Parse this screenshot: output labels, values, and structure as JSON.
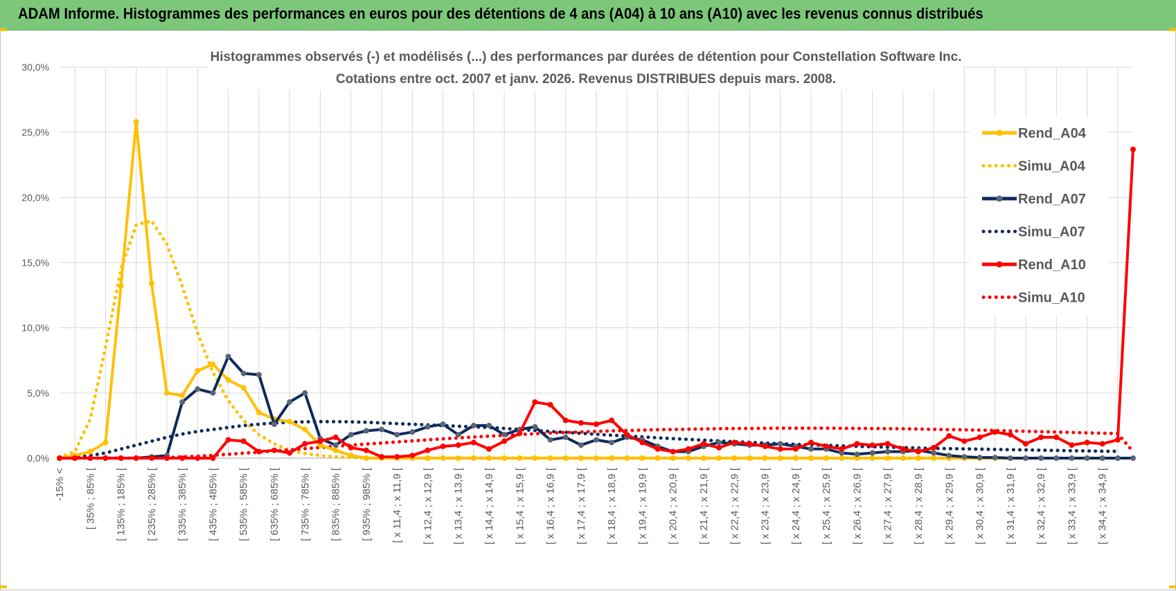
{
  "header": {
    "title": "ADAM Informe. Histogrammes des performances en euros pour des détentions de 4 ans (A04) à 10 ans (A10) avec les revenus connus distribués"
  },
  "chart_data": {
    "type": "line",
    "title_lines": [
      "Histogrammes observés (-) et modélisés (...) des performances par durées de détention pour Constellation Software Inc.",
      "Cotations entre oct. 2007 et janv. 2026. Revenus DISTRIBUES depuis mars. 2008."
    ],
    "y_ticks": [
      "0,0%",
      "5,0%",
      "10,0%",
      "15,0%",
      "20,0%",
      "25,0%",
      "30,0%"
    ],
    "ylim": [
      0,
      30
    ],
    "grid": true,
    "legend_position": "right",
    "x_labels": [
      "-15% <",
      "[ 35% ; 85% [",
      "[ 135% ; 185% [",
      "[ 235% ; 285% [",
      "[ 335% ; 385% [",
      "[ 435% ; 485% [",
      "[ 535% ; 585% [",
      "[ 635% ; 685% [",
      "[ 735% ; 785% [",
      "[ 835% ; 885% [",
      "[ 935% ; 985% [",
      "[ x 11,4 ; x 11,9 [",
      "[ x 12,4 ; x 12,9 [",
      "[ x 13,4 ; x 13,9 [",
      "[ x 14,4 ; x 14,9 [",
      "[ x 15,4 ; x 15,9 [",
      "[ x 16,4 ; x 16,9 [",
      "[ x 17,4 ; x 17,9 [",
      "[ x 18,4 ; x 18,9 [",
      "[ x 19,4 ; x 19,9 [",
      "[ x 20,4 ; x 20,9 [",
      "[ x 21,4 ; x 21,9 [",
      "[ x 22,4 ; x 22,9 [",
      "[ x 23,4 ; x 23,9 [",
      "[ x 24,4 ; x 24,9 [",
      "[ x 25,4 ; x 25,9 [",
      "[ x 26,4 ; x 26,9 [",
      "[ x 27,4 ; x 27,9 [",
      "[ x 28,4 ; x 28,9 [",
      "[ x 29,4 ; x 29,9 [",
      "[ x 30,4 ; x 30,9 [",
      "[ x 31,4 ; x 31,9 [",
      "[ x 32,4 ; x 32,9 [",
      "[ x 33,4 ; x 33,9 [",
      "[ x 34,4 ; x 34,9 ["
    ],
    "series": [
      {
        "name": "Rend_A04",
        "color": "#ffc000",
        "style": "solid",
        "values": [
          0,
          0.2,
          0.5,
          1.2,
          13.2,
          25.8,
          13.4,
          5.0,
          4.8,
          6.7,
          7.2,
          6.0,
          5.4,
          3.5,
          3.0,
          2.8,
          2.2,
          1.0,
          0.6,
          0.2,
          0,
          0,
          0,
          0,
          0,
          0,
          0,
          0,
          0,
          0,
          0,
          0,
          0,
          0,
          0,
          0,
          0,
          0,
          0,
          0,
          0,
          0,
          0,
          0,
          0,
          0,
          0,
          0,
          0,
          0,
          0,
          0,
          0,
          0,
          0,
          0,
          0,
          0,
          0,
          0,
          0,
          0,
          0,
          0,
          0,
          0,
          0,
          0,
          0,
          0
        ]
      },
      {
        "name": "Simu_A04",
        "color": "#ffc000",
        "style": "dotted",
        "values": [
          0.05,
          0.5,
          3.0,
          8.5,
          14.5,
          17.9,
          18.2,
          16.4,
          13.2,
          9.6,
          6.6,
          4.4,
          2.9,
          1.8,
          1.1,
          0.6,
          0.35,
          0.2,
          0.1,
          0.05,
          0,
          0,
          0,
          0,
          0,
          0,
          0,
          0,
          0,
          0,
          0,
          0,
          0,
          0,
          0,
          0,
          0,
          0,
          0,
          0,
          0,
          0,
          0,
          0,
          0,
          0,
          0,
          0,
          0,
          0,
          0,
          0,
          0,
          0,
          0,
          0,
          0,
          0,
          0,
          0,
          0,
          0,
          0,
          0,
          0,
          0,
          0,
          0,
          0,
          0
        ]
      },
      {
        "name": "Rend_A07",
        "color": "#0d2a5c",
        "style": "solid",
        "values": [
          0,
          0,
          0,
          0,
          0,
          0,
          0.1,
          0.2,
          4.3,
          5.3,
          5.0,
          7.8,
          6.5,
          6.4,
          2.6,
          4.3,
          5.0,
          1.5,
          1.0,
          1.8,
          2.1,
          2.2,
          1.8,
          2.0,
          2.4,
          2.6,
          1.8,
          2.5,
          2.5,
          1.8,
          2.2,
          2.4,
          1.4,
          1.6,
          1.0,
          1.4,
          1.2,
          1.6,
          1.4,
          0.9,
          0.5,
          0.5,
          0.9,
          1.2,
          1.1,
          1.0,
          1.0,
          1.1,
          0.9,
          0.7,
          0.7,
          0.4,
          0.3,
          0.4,
          0.5,
          0.5,
          0.6,
          0.4,
          0.2,
          0.1,
          0.05,
          0.05,
          0,
          0,
          0,
          0,
          0,
          0,
          0,
          0,
          0
        ]
      },
      {
        "name": "Simu_A07",
        "color": "#0d2a5c",
        "style": "dotted",
        "values": [
          0,
          0.05,
          0.2,
          0.4,
          0.7,
          1.0,
          1.3,
          1.6,
          1.85,
          2.05,
          2.2,
          2.35,
          2.5,
          2.6,
          2.7,
          2.75,
          2.78,
          2.8,
          2.8,
          2.78,
          2.75,
          2.7,
          2.65,
          2.6,
          2.55,
          2.5,
          2.45,
          2.4,
          2.35,
          2.28,
          2.2,
          2.12,
          2.05,
          1.98,
          1.9,
          1.83,
          1.76,
          1.7,
          1.63,
          1.56,
          1.5,
          1.44,
          1.38,
          1.32,
          1.26,
          1.21,
          1.16,
          1.11,
          1.06,
          1.02,
          0.98,
          0.94,
          0.9,
          0.87,
          0.84,
          0.81,
          0.78,
          0.75,
          0.73,
          0.71,
          0.69,
          0.67,
          0.65,
          0.63,
          0.61,
          0.59,
          0.57,
          0.55,
          0.53,
          0.52
        ]
      },
      {
        "name": "Rend_A10",
        "color": "#ff0000",
        "style": "solid",
        "values": [
          0,
          0,
          0,
          0,
          0,
          0,
          0,
          0,
          0,
          0,
          0,
          1.4,
          1.3,
          0.5,
          0.6,
          0.4,
          1.1,
          1.3,
          1.6,
          0.8,
          0.6,
          0.1,
          0.1,
          0.2,
          0.6,
          0.9,
          1.0,
          1.2,
          0.7,
          1.3,
          1.9,
          4.3,
          4.1,
          2.9,
          2.7,
          2.6,
          2.9,
          1.8,
          1.2,
          0.7,
          0.5,
          0.7,
          1.1,
          0.8,
          1.2,
          1.1,
          0.9,
          0.7,
          0.7,
          1.2,
          0.9,
          0.7,
          1.1,
          1.0,
          1.1,
          0.7,
          0.5,
          0.8,
          1.7,
          1.3,
          1.6,
          2.0,
          1.8,
          1.1,
          1.6,
          1.6,
          1.0,
          1.2,
          1.1,
          1.4,
          23.7
        ]
      },
      {
        "name": "Simu_A10",
        "color": "#ff0000",
        "style": "dotted",
        "values": [
          0,
          0,
          0,
          0,
          0,
          0,
          0.02,
          0.05,
          0.1,
          0.15,
          0.22,
          0.3,
          0.38,
          0.46,
          0.55,
          0.64,
          0.73,
          0.82,
          0.91,
          1.0,
          1.08,
          1.16,
          1.24,
          1.32,
          1.4,
          1.48,
          1.55,
          1.62,
          1.69,
          1.75,
          1.81,
          1.87,
          1.92,
          1.97,
          2.01,
          2.05,
          2.09,
          2.12,
          2.15,
          2.18,
          2.2,
          2.22,
          2.24,
          2.26,
          2.27,
          2.28,
          2.29,
          2.3,
          2.3,
          2.3,
          2.3,
          2.29,
          2.28,
          2.27,
          2.26,
          2.25,
          2.23,
          2.21,
          2.19,
          2.17,
          2.15,
          2.12,
          2.09,
          2.06,
          2.03,
          2.0,
          1.97,
          1.94,
          1.91,
          1.88,
          0.5
        ]
      }
    ]
  }
}
